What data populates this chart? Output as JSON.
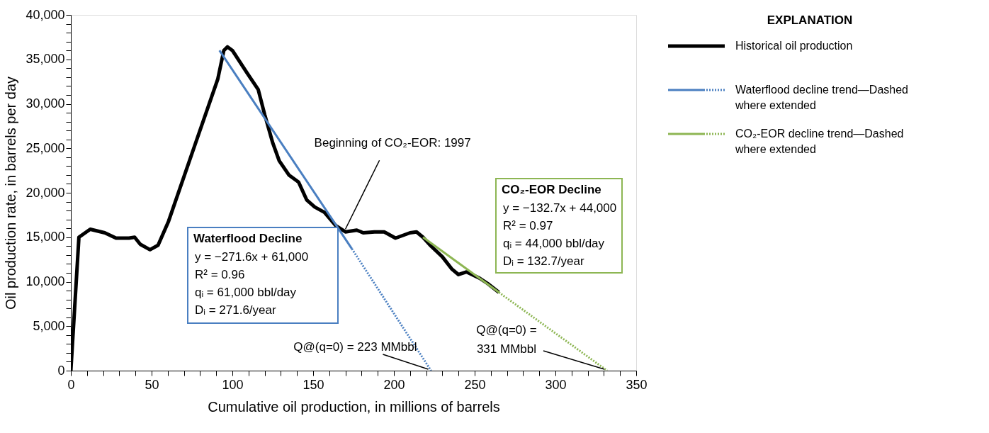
{
  "chart_data": {
    "type": "line",
    "xlabel": "Cumulative oil production, in millions of barrels",
    "ylabel": "Oil production rate, in barrels per day",
    "legend_title": "EXPLANATION",
    "legend": "top right",
    "grid": false,
    "xlim": [
      0,
      350
    ],
    "ylim": [
      0,
      40000
    ],
    "xticks": [
      0,
      {
        "value": 10,
        "label": null
      },
      {
        "value": 20,
        "label": null
      },
      {
        "value": 30,
        "label": null
      },
      {
        "value": 40,
        "label": null
      },
      50,
      {
        "value": 60,
        "label": null
      },
      {
        "value": 70,
        "label": null
      },
      {
        "value": 80,
        "label": null
      },
      {
        "value": 90,
        "label": null
      },
      100,
      {
        "value": 110,
        "label": null
      },
      {
        "value": 120,
        "label": null
      },
      {
        "value": 130,
        "label": null
      },
      {
        "value": 140,
        "label": null
      },
      150,
      {
        "value": 160,
        "label": null
      },
      {
        "value": 170,
        "label": null
      },
      {
        "value": 180,
        "label": null
      },
      {
        "value": 190,
        "label": null
      },
      200,
      {
        "value": 210,
        "label": null
      },
      {
        "value": 220,
        "label": null
      },
      {
        "value": 230,
        "label": null
      },
      {
        "value": 240,
        "label": null
      },
      250,
      {
        "value": 260,
        "label": null
      },
      {
        "value": 270,
        "label": null
      },
      {
        "value": 280,
        "label": null
      },
      {
        "value": 290,
        "label": null
      },
      300,
      {
        "value": 310,
        "label": null
      },
      {
        "value": 320,
        "label": null
      },
      {
        "value": 330,
        "label": null
      },
      {
        "value": 340,
        "label": null
      },
      350
    ],
    "yticks": [
      0,
      {
        "value": 1000,
        "label": null
      },
      {
        "value": 2000,
        "label": null
      },
      {
        "value": 3000,
        "label": null
      },
      {
        "value": 4000,
        "label": null
      },
      {
        "value": 5000,
        "label": "5,000"
      },
      {
        "value": 6000,
        "label": null
      },
      {
        "value": 7000,
        "label": null
      },
      {
        "value": 8000,
        "label": null
      },
      {
        "value": 9000,
        "label": null
      },
      {
        "value": 10000,
        "label": "10,000"
      },
      {
        "value": 11000,
        "label": null
      },
      {
        "value": 12000,
        "label": null
      },
      {
        "value": 13000,
        "label": null
      },
      {
        "value": 14000,
        "label": null
      },
      {
        "value": 15000,
        "label": "15,000"
      },
      {
        "value": 16000,
        "label": null
      },
      {
        "value": 17000,
        "label": null
      },
      {
        "value": 18000,
        "label": null
      },
      {
        "value": 19000,
        "label": null
      },
      {
        "value": 20000,
        "label": "20,000"
      },
      {
        "value": 21000,
        "label": null
      },
      {
        "value": 22000,
        "label": null
      },
      {
        "value": 23000,
        "label": null
      },
      {
        "value": 24000,
        "label": null
      },
      {
        "value": 25000,
        "label": "25,000"
      },
      {
        "value": 26000,
        "label": null
      },
      {
        "value": 27000,
        "label": null
      },
      {
        "value": 28000,
        "label": null
      },
      {
        "value": 29000,
        "label": null
      },
      {
        "value": 30000,
        "label": "30,000"
      },
      {
        "value": 31000,
        "label": null
      },
      {
        "value": 32000,
        "label": null
      },
      {
        "value": 33000,
        "label": null
      },
      {
        "value": 34000,
        "label": null
      },
      {
        "value": 35000,
        "label": "35,000"
      },
      {
        "value": 36000,
        "label": null
      },
      {
        "value": 37000,
        "label": null
      },
      {
        "value": 38000,
        "label": null
      },
      {
        "value": 39000,
        "label": null
      },
      {
        "value": 40000,
        "label": "40,000"
      }
    ],
    "series": [
      {
        "name": "Historical oil production",
        "color": "#000000",
        "line_style": "solid",
        "x": [
          0,
          5,
          12,
          21,
          28,
          36,
          39.5,
          43,
          49,
          54,
          60.5,
          78,
          91,
          94.7,
          97,
          100,
          109,
          116,
          120,
          125,
          129,
          135,
          141,
          146,
          151,
          157,
          164,
          170,
          177,
          181,
          188,
          194,
          201,
          210,
          214,
          218,
          223,
          230,
          236,
          240,
          245,
          253,
          258,
          265
        ],
        "values": [
          0,
          15000,
          15900,
          15500,
          14900,
          14900,
          15000,
          14200,
          13600,
          14100,
          16800,
          26000,
          32800,
          36000,
          36400,
          36000,
          33500,
          31600,
          28800,
          25600,
          23600,
          22000,
          21200,
          19200,
          18400,
          17800,
          16300,
          15600,
          15800,
          15500,
          15600,
          15600,
          14900,
          15500,
          15600,
          15000,
          14000,
          12800,
          11400,
          10800,
          11100,
          10400,
          9800,
          8800
        ]
      },
      {
        "name": "Waterflood decline trend—Dashed\nwhere extended",
        "color": "#4a7fc1",
        "line_style": "solid",
        "x": [
          92,
          174
        ],
        "values": [
          36000,
          13700
        ]
      },
      {
        "color": "#4a7fc1",
        "line_style": "dotted",
        "x": [
          174,
          223
        ],
        "values": [
          13700,
          0
        ]
      },
      {
        "name": "CO₂-EOR decline trend—Dashed\nwhere extended",
        "color": "#8db653",
        "line_style": "solid",
        "x": [
          218,
          265
        ],
        "values": [
          15000,
          8800
        ]
      },
      {
        "color": "#8db653",
        "line_style": "dotted",
        "x": [
          265,
          332
        ],
        "values": [
          8800,
          0
        ]
      }
    ],
    "annotations": [
      "Waterflood Decline\ny = −271.6x + 61,000\nR² = 0.96\nqᵢ = 61,000 bbl/day\nDᵢ = 271.6/year",
      "CO₂-EOR Decline\ny = −132.7x + 44,000\nR² = 0.97\nqᵢ = 44,000 bbl/day\nDᵢ = 132.7/year",
      {
        "text": "Beginning of CO₂-EOR: 1997",
        "x": 170,
        "y": 15600
      },
      {
        "text": "Q@(q=0) = 223 MMbbl",
        "x": 223,
        "y": 0
      },
      {
        "text": "Q@(q=0) =\n331 MMbbl",
        "x": 332,
        "y": 0
      }
    ]
  }
}
